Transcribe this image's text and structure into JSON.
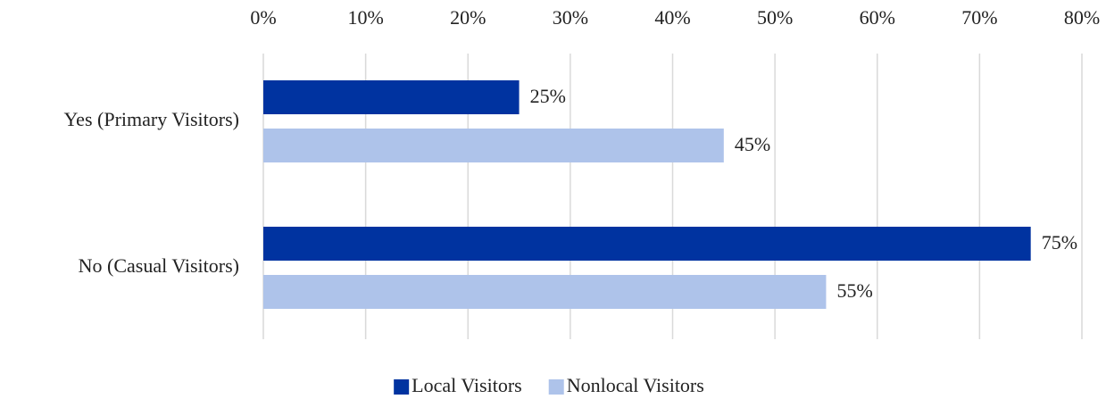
{
  "chart_data": {
    "type": "bar",
    "orientation": "horizontal",
    "categories": [
      "Yes (Primary Visitors)",
      "No (Casual Visitors)"
    ],
    "series": [
      {
        "name": "Local Visitors",
        "color": "#0033a0",
        "values": [
          25,
          75
        ],
        "value_labels": [
          "25%",
          "75%"
        ]
      },
      {
        "name": "Nonlocal Visitors",
        "color": "#aec3ea",
        "values": [
          45,
          55
        ],
        "value_labels": [
          "45%",
          "55%"
        ]
      }
    ],
    "xlim": [
      0,
      80
    ],
    "xticks": [
      {
        "value": 0,
        "label": "0%"
      },
      {
        "value": 10,
        "label": "10%"
      },
      {
        "value": 20,
        "label": "20%"
      },
      {
        "value": 30,
        "label": "30%"
      },
      {
        "value": 40,
        "label": "40%"
      },
      {
        "value": 50,
        "label": "50%"
      },
      {
        "value": 60,
        "label": "60%"
      },
      {
        "value": 70,
        "label": "70%"
      },
      {
        "value": 80,
        "label": "80%"
      }
    ],
    "grid": true,
    "legend": "bottom"
  }
}
